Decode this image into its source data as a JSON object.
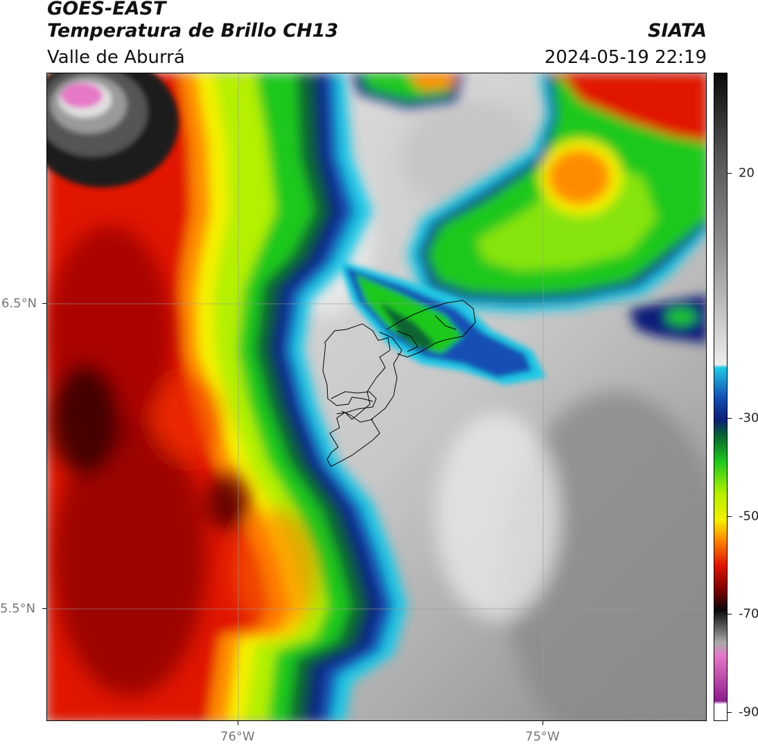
{
  "header": {
    "satellite": "GOES-EAST",
    "product": "Temperatura de Brillo CH13",
    "region": "Valle de Aburrá",
    "agency": "SIATA",
    "datetime": "2024-05-19 22:19"
  },
  "map": {
    "lon_labels": [
      "76°W",
      "75°W"
    ],
    "lat_labels": [
      "6.5°N",
      "5.5°N"
    ]
  },
  "colorbar": {
    "tick_labels": [
      "20",
      "-30",
      "-50",
      "-70",
      "-90"
    ],
    "colors": {
      "warm_high": "#1a1a1a",
      "warm_mid": "#8c8c8c",
      "warm_low": "#ececec",
      "cyan": "#1ec8e6",
      "blue": "#1450b4",
      "navy": "#0a1e78",
      "dark_green": "#0a6432",
      "green": "#1ec81e",
      "yellow_green": "#b4f000",
      "yellow": "#f5f000",
      "orange": "#ff8c00",
      "red": "#e11400",
      "dark_red": "#780000",
      "black": "#0a0a0a",
      "pink": "#e678c8",
      "purple": "#8c1e8c"
    }
  }
}
